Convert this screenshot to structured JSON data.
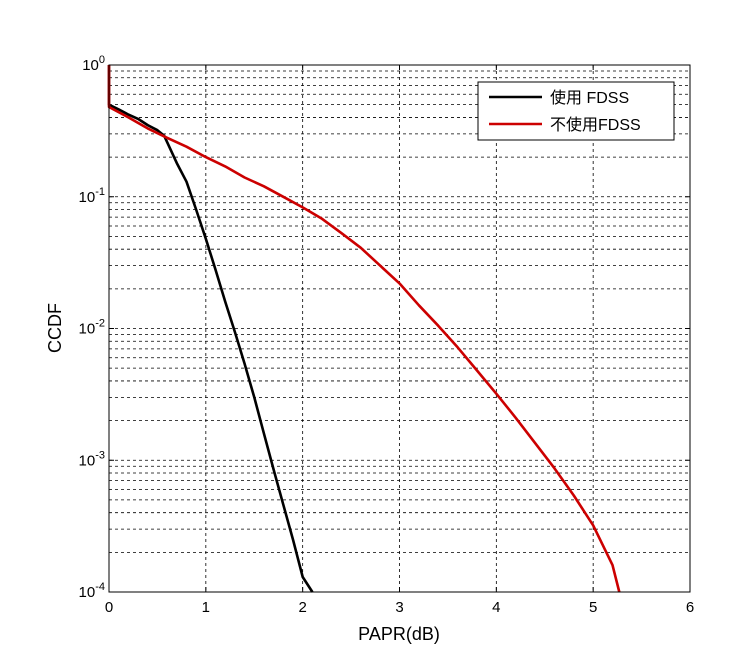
{
  "chart_data": {
    "type": "line",
    "title": "",
    "xlabel": "PAPR(dB)",
    "ylabel": "CCDF",
    "xlim": [
      0,
      6
    ],
    "ylim": [
      0.0001,
      1
    ],
    "yscale": "log",
    "grid": true,
    "legend_position": "top-right",
    "x_ticks": [
      "0",
      "1",
      "2",
      "3",
      "4",
      "5",
      "6"
    ],
    "y_ticks": [
      {
        "base": "10",
        "exp": "0",
        "value": 1
      },
      {
        "base": "10",
        "exp": "-1",
        "value": 0.1
      },
      {
        "base": "10",
        "exp": "-2",
        "value": 0.01
      },
      {
        "base": "10",
        "exp": "-3",
        "value": 0.001
      },
      {
        "base": "10",
        "exp": "-4",
        "value": 0.0001
      }
    ],
    "series": [
      {
        "name": "使用 FDSS",
        "color": "#000000",
        "points": [
          [
            0.0,
            1.0
          ],
          [
            0.0,
            0.5
          ],
          [
            0.1,
            0.46
          ],
          [
            0.2,
            0.42
          ],
          [
            0.3,
            0.39
          ],
          [
            0.4,
            0.35
          ],
          [
            0.5,
            0.32
          ],
          [
            0.57,
            0.29
          ],
          [
            0.6,
            0.26
          ],
          [
            0.7,
            0.18
          ],
          [
            0.8,
            0.13
          ],
          [
            0.9,
            0.08
          ],
          [
            1.0,
            0.048
          ],
          [
            1.1,
            0.028
          ],
          [
            1.2,
            0.016
          ],
          [
            1.3,
            0.0094
          ],
          [
            1.4,
            0.0054
          ],
          [
            1.5,
            0.003
          ],
          [
            1.6,
            0.0016
          ],
          [
            1.7,
            0.00085
          ],
          [
            1.8,
            0.00046
          ],
          [
            1.9,
            0.00025
          ],
          [
            2.0,
            0.00013
          ],
          [
            2.1,
            0.0001
          ]
        ]
      },
      {
        "name": "不使用FDSS",
        "color": "#cc0000",
        "points": [
          [
            0.0,
            1.0
          ],
          [
            0.0,
            0.48
          ],
          [
            0.2,
            0.4
          ],
          [
            0.4,
            0.33
          ],
          [
            0.6,
            0.28
          ],
          [
            0.8,
            0.24
          ],
          [
            1.0,
            0.2
          ],
          [
            1.2,
            0.17
          ],
          [
            1.4,
            0.14
          ],
          [
            1.6,
            0.12
          ],
          [
            1.8,
            0.1
          ],
          [
            2.0,
            0.083
          ],
          [
            2.2,
            0.068
          ],
          [
            2.4,
            0.053
          ],
          [
            2.6,
            0.041
          ],
          [
            2.8,
            0.03
          ],
          [
            3.0,
            0.022
          ],
          [
            3.2,
            0.015
          ],
          [
            3.4,
            0.0105
          ],
          [
            3.6,
            0.0072
          ],
          [
            3.8,
            0.0048
          ],
          [
            4.0,
            0.0032
          ],
          [
            4.2,
            0.0021
          ],
          [
            4.4,
            0.00135
          ],
          [
            4.6,
            0.00087
          ],
          [
            4.8,
            0.00054
          ],
          [
            5.0,
            0.00032
          ],
          [
            5.2,
            0.00016
          ],
          [
            5.27,
            0.0001
          ]
        ]
      }
    ]
  }
}
